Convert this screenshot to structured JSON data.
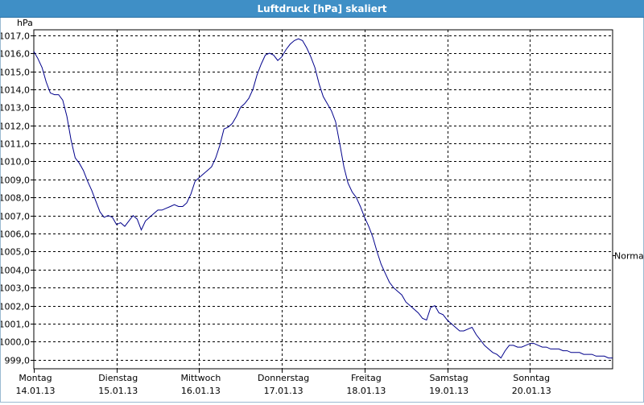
{
  "window": {
    "title": "Luftdruck [hPa] skaliert"
  },
  "chart_data": {
    "type": "line",
    "title": "Luftdruck [hPa] skaliert",
    "ylabel": "hPa",
    "xlabel": "",
    "ylim": [
      998.5,
      1017.3
    ],
    "yticks": [
      "999,0",
      "1000,0",
      "1001,0",
      "1002,0",
      "1003,0",
      "1004,0",
      "1005,0",
      "1006,0",
      "1007,0",
      "1008,0",
      "1009,0",
      "1010,0",
      "1011,0",
      "1012,0",
      "1013,0",
      "1014,0",
      "1015,0",
      "1016,0",
      "1017,0"
    ],
    "ytick_values": [
      999,
      1000,
      1001,
      1002,
      1003,
      1004,
      1005,
      1006,
      1007,
      1008,
      1009,
      1010,
      1011,
      1012,
      1013,
      1014,
      1015,
      1016,
      1017
    ],
    "days": [
      {
        "name": "Montag",
        "date": "14.01.13"
      },
      {
        "name": "Dienstag",
        "date": "15.01.13"
      },
      {
        "name": "Mittwoch",
        "date": "16.01.13"
      },
      {
        "name": "Donnerstag",
        "date": "17.01.13"
      },
      {
        "name": "Freitag",
        "date": "18.01.13"
      },
      {
        "name": "Samstag",
        "date": "19.01.13"
      },
      {
        "name": "Sonntag",
        "date": "20.01.13"
      }
    ],
    "xlim_days": [
      0,
      7
    ],
    "grid": true,
    "reference_label": "Normal",
    "reference_value": 1004.8,
    "line_color": "#00008b",
    "series": [
      {
        "x_days": [
          0.0,
          0.05,
          0.1,
          0.15,
          0.2,
          0.25,
          0.3,
          0.35,
          0.4,
          0.45,
          0.5,
          0.55,
          0.6,
          0.65,
          0.7,
          0.75,
          0.8,
          0.85,
          0.9,
          0.95,
          1.0,
          1.05,
          1.1,
          1.15,
          1.2,
          1.25,
          1.3,
          1.35,
          1.4,
          1.45,
          1.5,
          1.55,
          1.6,
          1.65,
          1.7,
          1.75,
          1.8,
          1.85,
          1.9,
          1.95,
          2.0,
          2.05,
          2.1,
          2.15,
          2.2,
          2.25,
          2.3,
          2.35,
          2.4,
          2.45,
          2.5,
          2.55,
          2.6,
          2.65,
          2.7,
          2.75,
          2.8,
          2.85,
          2.9,
          2.95,
          3.0,
          3.05,
          3.1,
          3.15,
          3.2,
          3.25,
          3.3,
          3.35,
          3.4,
          3.45,
          3.5,
          3.55,
          3.6,
          3.65,
          3.7,
          3.75,
          3.8,
          3.85,
          3.9,
          3.95,
          4.0,
          4.05,
          4.1,
          4.15,
          4.2,
          4.25,
          4.3,
          4.35,
          4.4,
          4.45,
          4.5,
          4.55,
          4.6,
          4.65,
          4.7,
          4.75,
          4.8,
          4.85,
          4.9,
          4.95,
          5.0,
          5.05,
          5.1,
          5.15,
          5.2,
          5.25,
          5.3,
          5.35,
          5.4,
          5.45,
          5.5,
          5.55,
          5.6,
          5.65,
          5.7,
          5.75,
          5.8,
          5.85,
          5.9,
          5.95,
          6.0,
          6.05,
          6.1,
          6.15,
          6.2,
          6.25,
          6.3,
          6.35,
          6.4,
          6.45,
          6.5,
          6.55,
          6.6,
          6.65,
          6.7,
          6.75,
          6.8,
          6.85,
          6.9,
          6.95,
          7.0
        ],
        "values": [
          1016.1,
          1015.7,
          1015.2,
          1014.4,
          1013.8,
          1013.7,
          1013.7,
          1013.4,
          1012.5,
          1011.2,
          1010.2,
          1009.9,
          1009.5,
          1008.9,
          1008.4,
          1007.8,
          1007.2,
          1006.9,
          1007.0,
          1006.9,
          1006.5,
          1006.6,
          1006.4,
          1006.7,
          1007.0,
          1006.8,
          1006.2,
          1006.7,
          1006.9,
          1007.1,
          1007.3,
          1007.3,
          1007.4,
          1007.5,
          1007.6,
          1007.5,
          1007.5,
          1007.7,
          1008.2,
          1008.9,
          1009.1,
          1009.3,
          1009.5,
          1009.7,
          1010.2,
          1010.9,
          1011.8,
          1011.9,
          1012.1,
          1012.5,
          1013.0,
          1013.2,
          1013.5,
          1014.0,
          1014.8,
          1015.4,
          1015.9,
          1016.0,
          1015.9,
          1015.6,
          1015.8,
          1016.2,
          1016.5,
          1016.7,
          1016.8,
          1016.7,
          1016.3,
          1015.8,
          1015.2,
          1014.3,
          1013.6,
          1013.2,
          1012.8,
          1012.2,
          1011.0,
          1009.7,
          1008.8,
          1008.3,
          1008.0,
          1007.5,
          1006.9,
          1006.4,
          1005.8,
          1005.0,
          1004.3,
          1003.8,
          1003.3,
          1003.0,
          1002.8,
          1002.6,
          1002.2,
          1002.0,
          1001.8,
          1001.6,
          1001.3,
          1001.2,
          1001.9,
          1002.0,
          1001.6,
          1001.5,
          1001.2,
          1001.0,
          1000.8,
          1000.6,
          1000.6,
          1000.7,
          1000.8,
          1000.4,
          1000.1,
          999.8,
          999.6,
          999.4,
          999.3,
          999.1,
          999.5,
          999.8,
          999.8,
          999.7,
          999.7,
          999.8,
          999.9,
          999.9,
          999.8,
          999.7,
          999.7,
          999.6,
          999.6,
          999.6,
          999.5,
          999.5,
          999.4,
          999.4,
          999.4,
          999.3,
          999.3,
          999.3,
          999.2,
          999.2,
          999.2,
          999.1,
          999.1
        ]
      }
    ]
  }
}
